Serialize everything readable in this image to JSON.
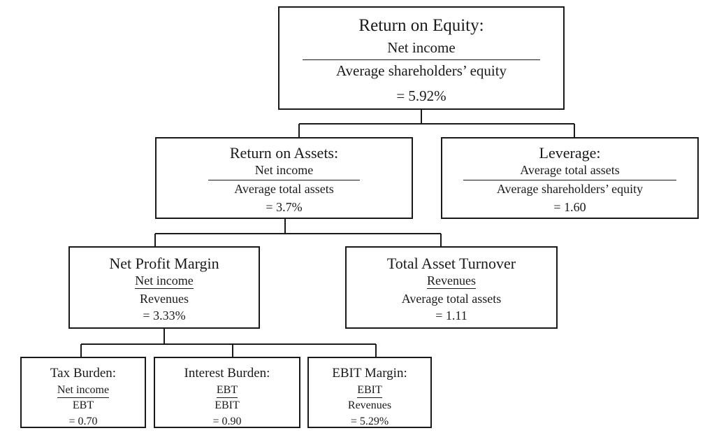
{
  "roe": {
    "title": "Return on Equity:",
    "numerator": "Net income",
    "denominator": "Average shareholders’ equity",
    "value": "= 5.92%"
  },
  "roa": {
    "title": "Return on Assets:",
    "numerator": "Net income",
    "denominator": "Average total assets",
    "value": "= 3.7%"
  },
  "leverage": {
    "title": "Leverage:",
    "numerator": "Average total assets",
    "denominator": "Average shareholders’ equity",
    "value": "= 1.60"
  },
  "npm": {
    "title": "Net Profit Margin",
    "numerator": "Net income",
    "denominator": "Revenues",
    "value": "= 3.33%"
  },
  "tat": {
    "title": "Total Asset Turnover",
    "numerator": "Revenues",
    "denominator": "Average total assets",
    "value": "= 1.11"
  },
  "tax": {
    "title": "Tax Burden:",
    "numerator": "Net income",
    "denominator": "EBT",
    "value": "= 0.70"
  },
  "interest": {
    "title": "Interest Burden:",
    "numerator": "EBT",
    "denominator": "EBIT",
    "value": "= 0.90"
  },
  "ebit": {
    "title": "EBIT Margin:",
    "numerator": "EBIT",
    "denominator": "Revenues",
    "value": "= 5.29%"
  },
  "colors": {
    "line": "#1a1a1a",
    "background": "#ffffff"
  }
}
